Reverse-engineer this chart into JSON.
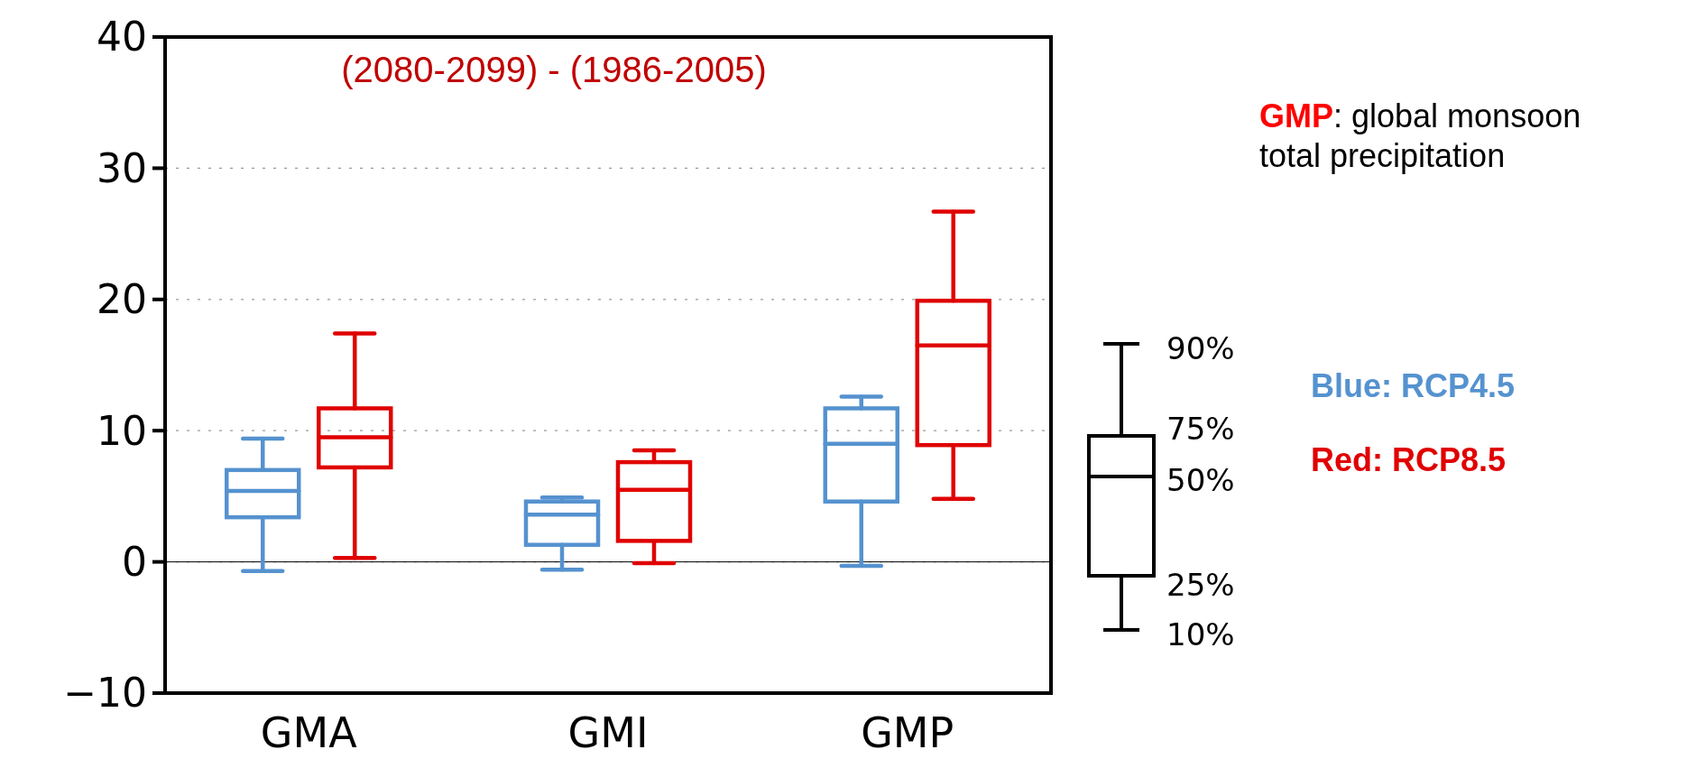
{
  "chart_data": {
    "type": "box",
    "categories": [
      "GMA",
      "GMI",
      "GMP"
    ],
    "series": [
      {
        "name": "Blue: RCP4.5",
        "color": "#5592cf",
        "boxes": [
          {
            "low": -0.7,
            "q1": 3.4,
            "median": 5.4,
            "q3": 7.0,
            "high": 9.4
          },
          {
            "low": -0.6,
            "q1": 1.3,
            "median": 3.6,
            "q3": 4.6,
            "high": 4.9
          },
          {
            "low": -0.3,
            "q1": 4.6,
            "median": 9.0,
            "q3": 11.7,
            "high": 12.6
          }
        ]
      },
      {
        "name": "Red: RCP8.5",
        "color": "#e00000",
        "boxes": [
          {
            "low": 0.3,
            "q1": 7.2,
            "median": 9.5,
            "q3": 11.7,
            "high": 17.4
          },
          {
            "low": -0.1,
            "q1": 1.6,
            "median": 5.5,
            "q3": 7.6,
            "high": 8.5
          },
          {
            "low": 4.8,
            "q1": 8.9,
            "median": 16.5,
            "q3": 19.9,
            "high": 26.7
          }
        ]
      }
    ],
    "ylim": [
      -10,
      40
    ],
    "yticks": [
      {
        "value": -10,
        "label": "−10"
      },
      0,
      10,
      20,
      30,
      40
    ],
    "grid": "y",
    "legend": "right",
    "ref_lines": [
      {
        "axis": "y",
        "value": 0,
        "color": "#000000"
      }
    ],
    "annotations": [
      "(2080-2099) - (1986-2005)",
      "GMP: global monsoon total precipitation",
      "90%",
      "75%",
      "50%",
      "25%",
      "10%"
    ]
  }
}
